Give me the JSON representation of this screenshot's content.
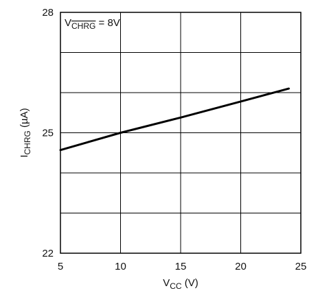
{
  "chart_data": {
    "type": "line",
    "title": "",
    "xlabel": {
      "main": "V",
      "sub": "CC",
      "suffix": " (V)"
    },
    "ylabel": {
      "main": "I",
      "sub": "CHRG",
      "suffix": " (µA)"
    },
    "xlim": [
      5,
      25
    ],
    "ylim": [
      22,
      28
    ],
    "xticks": [
      5,
      10,
      15,
      20,
      25
    ],
    "yticks": [
      22,
      23,
      24,
      25,
      26,
      27,
      28
    ],
    "ytick_labels": [
      {
        "value": 22,
        "label": "22"
      },
      {
        "value": 25,
        "label": "25"
      },
      {
        "value": 28,
        "label": "28"
      }
    ],
    "grid": true,
    "line_color": "#000000",
    "annotation": {
      "main": "V",
      "sub": "CHRG",
      "suffix": " = 8V"
    },
    "series": [
      {
        "x": [
          5,
          10,
          15,
          20,
          24
        ],
        "y": [
          24.57,
          25.0,
          25.38,
          25.78,
          26.1
        ]
      }
    ]
  }
}
